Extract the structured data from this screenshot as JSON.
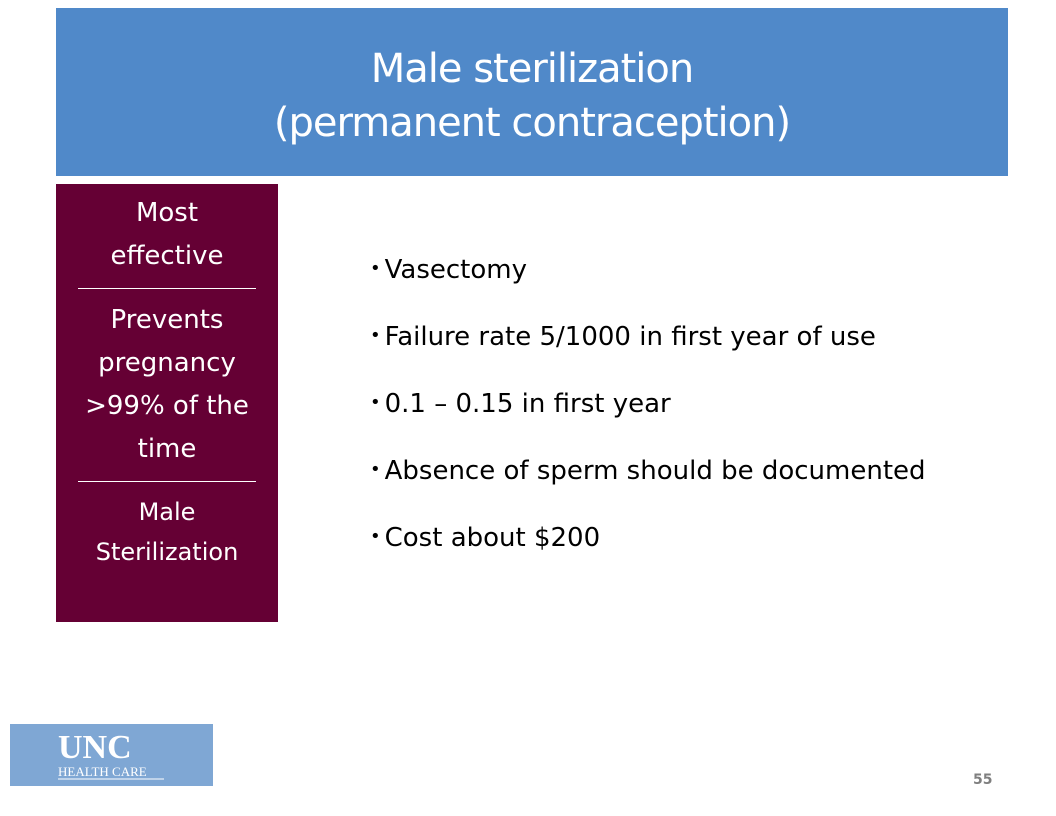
{
  "header": {
    "title_line1": "Male sterilization",
    "title_line2": "(permanent contraception)"
  },
  "sidebar": {
    "items": [
      "Most effective",
      "Prevents pregnancy >99% of the time",
      "Male Sterilization"
    ]
  },
  "bullets": [
    "Vasectomy",
    "Failure rate 5/1000 in first year of use",
    "0.1 – 0.15 in first year",
    "Absence of sperm should be documented",
    "Cost about $200"
  ],
  "logo": {
    "line1": "UNC",
    "line2": "HEALTH CARE"
  },
  "page_number": "55"
}
